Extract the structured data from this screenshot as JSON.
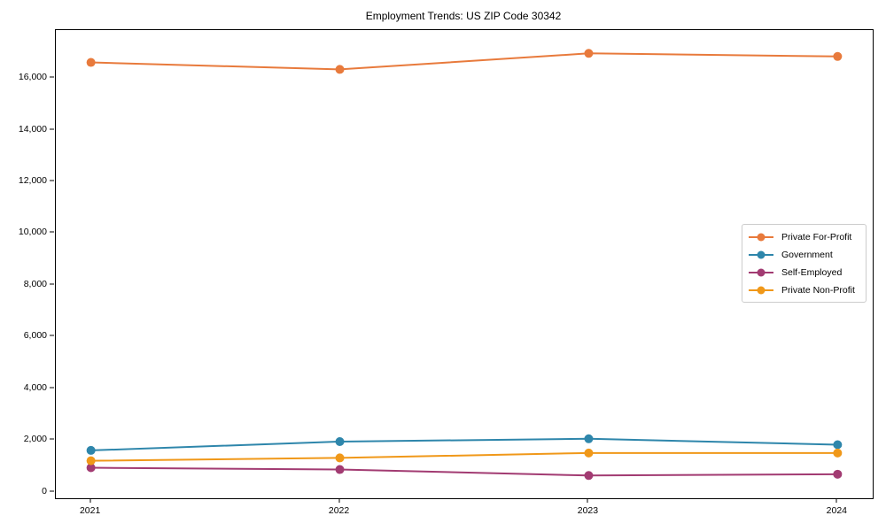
{
  "chart_data": {
    "type": "line",
    "title": "Employment Trends: US ZIP Code 30342",
    "xlabel": "",
    "ylabel": "",
    "x": [
      2021,
      2022,
      2023,
      2024
    ],
    "x_tick_labels": [
      "2021",
      "2022",
      "2023",
      "2024"
    ],
    "series": [
      {
        "name": "Private For-Profit",
        "color": "#E87A3C",
        "values": [
          16600,
          16330,
          16950,
          16830
        ]
      },
      {
        "name": "Government",
        "color": "#2E86AB",
        "values": [
          1600,
          1940,
          2050,
          1820
        ]
      },
      {
        "name": "Self-Employed",
        "color": "#A23B72",
        "values": [
          930,
          860,
          630,
          680
        ]
      },
      {
        "name": "Private Non-Profit",
        "color": "#F09819",
        "values": [
          1200,
          1310,
          1500,
          1500
        ]
      }
    ],
    "yticks": {
      "values": [
        0,
        2000,
        4000,
        6000,
        8000,
        10000,
        12000,
        14000,
        16000
      ],
      "labels": [
        "0",
        "2,000",
        "4,000",
        "6,000",
        "8,000",
        "10,000",
        "12,000",
        "14,000",
        "16,000"
      ]
    },
    "ylim": [
      -250,
      17850
    ],
    "x_pad_fraction": 0.043,
    "grid": false,
    "legend_position": "center right",
    "line_width": 2,
    "marker_radius": 5
  }
}
